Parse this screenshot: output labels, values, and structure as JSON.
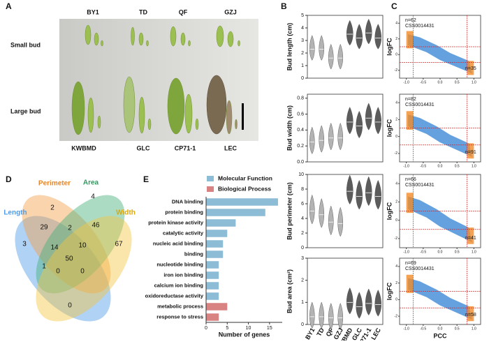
{
  "figure": {
    "panel_labels": [
      "A",
      "B",
      "C",
      "D",
      "E"
    ],
    "photo": {
      "top_labels": [
        "BY1",
        "TD",
        "QF",
        "GZJ"
      ],
      "bottom_labels": [
        "KWBMD",
        "GLC",
        "CP71-1",
        "LEC"
      ],
      "row_labels": [
        "Small bud",
        "Large bud"
      ]
    },
    "venn": {
      "sets": [
        "Length",
        "Perimeter",
        "Area",
        "Width"
      ],
      "regions": [
        3,
        2,
        29,
        2,
        4,
        46,
        14,
        10,
        67,
        50,
        1,
        0,
        0,
        0
      ]
    }
  },
  "chart_data": [
    {
      "type": "violin",
      "ylabel": "Bud length (cm)",
      "values": [
        2.3,
        2.3,
        1.6,
        1.6,
        3.5,
        3.2,
        3.6,
        3.2
      ],
      "colors": [
        "#b3b3b3",
        "#b3b3b3",
        "#b3b3b3",
        "#b3b3b3",
        "#5c5c5c",
        "#5c5c5c",
        "#5c5c5c",
        "#5c5c5c"
      ],
      "ylim": [
        0,
        5
      ],
      "yticks": [
        0,
        1,
        2,
        3,
        4,
        5
      ]
    },
    {
      "type": "violin",
      "ylabel": "Bud width (cm)",
      "values": [
        0.25,
        0.27,
        0.3,
        0.3,
        0.5,
        0.45,
        0.55,
        0.5
      ],
      "colors": [
        "#b3b3b3",
        "#b3b3b3",
        "#b3b3b3",
        "#b3b3b3",
        "#5c5c5c",
        "#5c5c5c",
        "#5c5c5c",
        "#5c5c5c"
      ],
      "ylim": [
        0,
        0.85
      ],
      "yticks": [
        {
          "value": 0,
          "label": "0.0"
        },
        0.2,
        0.4,
        0.6,
        0.8
      ]
    },
    {
      "type": "violin",
      "ylabel": "Bud perimeter (cm)",
      "values": [
        5,
        4.5,
        3.5,
        3.3,
        7.7,
        7,
        7.5,
        7
      ],
      "colors": [
        "#b3b3b3",
        "#b3b3b3",
        "#b3b3b3",
        "#b3b3b3",
        "#5c5c5c",
        "#5c5c5c",
        "#5c5c5c",
        "#5c5c5c"
      ],
      "ylim": [
        0,
        10
      ],
      "yticks": [
        0,
        2,
        4,
        6,
        8,
        10
      ]
    },
    {
      "type": "violin",
      "ylabel": "Bud area (cm²)",
      "categories": [
        "BY1",
        "TD",
        "QF",
        "GZJ",
        "KWBMD",
        "GLC",
        "CP71-1",
        "LEC"
      ],
      "values": [
        0.35,
        0.35,
        0.3,
        0.3,
        1.0,
        0.8,
        0.95,
        0.9
      ],
      "colors": [
        "#b3b3b3",
        "#b3b3b3",
        "#b3b3b3",
        "#b3b3b3",
        "#5c5c5c",
        "#5c5c5c",
        "#5c5c5c",
        "#5c5c5c"
      ],
      "ylim": [
        0,
        3
      ],
      "yticks": [
        0,
        1,
        2,
        3
      ]
    },
    {
      "type": "scatter",
      "ylabel": "logFC",
      "annotations": [
        "n=62",
        "CSS0014431",
        "n=35"
      ],
      "xlim": [
        -1.2,
        1.2
      ],
      "xticks": [
        {
          "value": -1,
          "label": "-1.0"
        },
        {
          "value": -0.5,
          "label": "-0.5"
        },
        {
          "value": 0,
          "label": "0.0"
        },
        0.5,
        {
          "value": 1,
          "label": "1.0"
        }
      ],
      "ylim": [
        -3,
        5
      ],
      "yticks": [
        -2,
        0,
        2,
        4
      ],
      "ref_x": [
        -0.8,
        0.8
      ],
      "ref_y": [
        1,
        -1
      ]
    },
    {
      "type": "scatter",
      "ylabel": "logFC",
      "annotations": [
        "n=82",
        "CSS0014431",
        "n=91"
      ],
      "xlim": [
        -1.2,
        1.2
      ],
      "xticks": [
        {
          "value": -1,
          "label": "-1.0"
        },
        {
          "value": -0.5,
          "label": "-0.5"
        },
        {
          "value": 0,
          "label": "0.0"
        },
        0.5,
        {
          "value": 1,
          "label": "1.0"
        }
      ],
      "ylim": [
        -3,
        5
      ],
      "yticks": [
        -2,
        0,
        2,
        4
      ],
      "ref_x": [
        -0.8,
        0.8
      ],
      "ref_y": [
        1,
        -1
      ]
    },
    {
      "type": "scatter",
      "ylabel": "logFC",
      "annotations": [
        "n=66",
        "CSS0014431",
        "n=41"
      ],
      "xlim": [
        -1.2,
        1.2
      ],
      "xticks": [
        {
          "value": -1,
          "label": "-1.0"
        },
        {
          "value": -0.5,
          "label": "-0.5"
        },
        {
          "value": 0,
          "label": "0.0"
        },
        0.5,
        {
          "value": 1,
          "label": "1.0"
        }
      ],
      "ylim": [
        -3,
        5
      ],
      "yticks": [
        -2,
        0,
        2,
        4
      ],
      "ref_x": [
        -0.8,
        0.8
      ],
      "ref_y": [
        1,
        -1
      ]
    },
    {
      "type": "scatter",
      "ylabel": "logFC",
      "xlabel": "PCC",
      "annotations": [
        "n=69",
        "CSS0014431",
        "n=58"
      ],
      "xlim": [
        -1.2,
        1.2
      ],
      "xticks": [
        {
          "value": -1,
          "label": "-1.0"
        },
        {
          "value": -0.5,
          "label": "-0.5"
        },
        {
          "value": 0,
          "label": "0.0"
        },
        0.5,
        {
          "value": 1,
          "label": "1.0"
        }
      ],
      "ylim": [
        -3,
        5
      ],
      "yticks": [
        -2,
        0,
        2,
        4
      ],
      "ref_x": [
        -0.8,
        0.8
      ],
      "ref_y": [
        1,
        -1
      ]
    },
    {
      "type": "hbar",
      "xlabel": "Number of genes",
      "categories": [
        "DNA binding",
        "protein binding",
        "protein kinase activity",
        "catalytic activity",
        "nucleic acid binding",
        "binding",
        "nucleotide binding",
        "iron ion binding",
        "calcium ion binding",
        "oxidoreductase activity",
        "metabolic process",
        "response to stress"
      ],
      "series": [
        {
          "name": "Molecular Function",
          "color": "#8dbcd6",
          "values": [
            17,
            14,
            7,
            5,
            4,
            4,
            3,
            3,
            3,
            3,
            null,
            null
          ]
        },
        {
          "name": "Biological Process",
          "color": "#d98282",
          "values": [
            null,
            null,
            null,
            null,
            null,
            null,
            null,
            null,
            null,
            null,
            5,
            3
          ]
        }
      ],
      "xlim": [
        0,
        18
      ],
      "xticks": [
        0,
        5,
        10,
        15
      ]
    }
  ]
}
